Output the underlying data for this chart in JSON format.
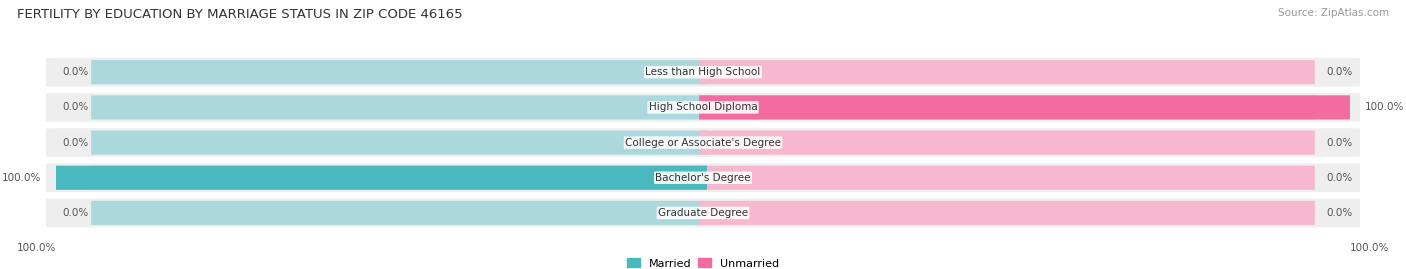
{
  "title": "FERTILITY BY EDUCATION BY MARRIAGE STATUS IN ZIP CODE 46165",
  "source": "Source: ZipAtlas.com",
  "categories": [
    "Less than High School",
    "High School Diploma",
    "College or Associate's Degree",
    "Bachelor's Degree",
    "Graduate Degree"
  ],
  "married_values": [
    0.0,
    0.0,
    0.0,
    100.0,
    0.0
  ],
  "unmarried_values": [
    0.0,
    100.0,
    0.0,
    0.0,
    0.0
  ],
  "married_color": "#4ab8bf",
  "unmarried_color": "#f26ca0",
  "married_color_light": "#aad8dc",
  "unmarried_color_light": "#f7b8cf",
  "row_bg_color": "#eeeeee",
  "title_fontsize": 9.5,
  "source_fontsize": 7.5,
  "value_fontsize": 7.5,
  "cat_fontsize": 7.5,
  "legend_fontsize": 8,
  "max_val": 100.0
}
